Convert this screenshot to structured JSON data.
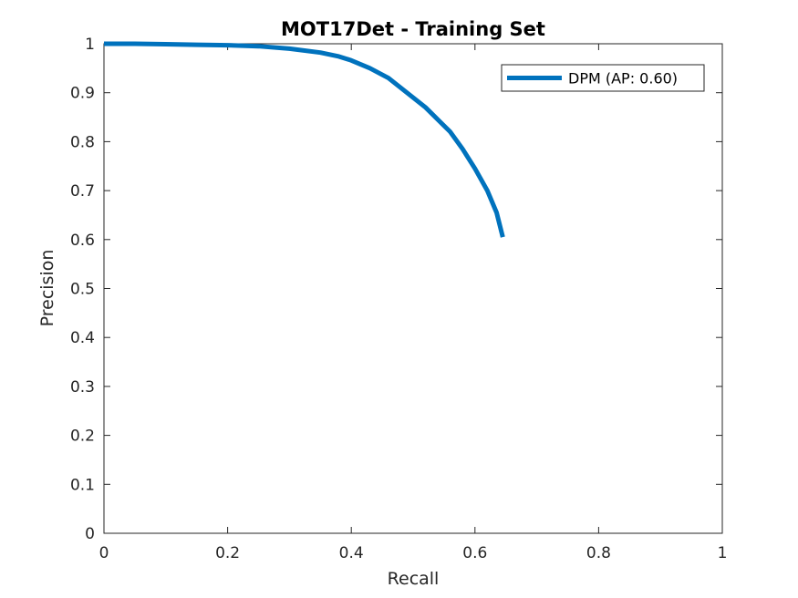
{
  "chart_data": {
    "type": "line",
    "title": "MOT17Det - Training Set",
    "xlabel": "Recall",
    "ylabel": "Precision",
    "xlim": [
      0,
      1
    ],
    "ylim": [
      0,
      1
    ],
    "xticks": [
      "0",
      "0.2",
      "0.4",
      "0.6",
      "0.8",
      "1"
    ],
    "yticks": [
      "0",
      "0.1",
      "0.2",
      "0.3",
      "0.4",
      "0.5",
      "0.6",
      "0.7",
      "0.8",
      "0.9",
      "1"
    ],
    "grid": false,
    "legend_position": "top-right",
    "series": [
      {
        "name": "DPM (AP: 0.60)",
        "color": "#0072BD",
        "x": [
          0.0,
          0.05,
          0.1,
          0.15,
          0.2,
          0.25,
          0.3,
          0.35,
          0.38,
          0.4,
          0.43,
          0.46,
          0.49,
          0.52,
          0.54,
          0.56,
          0.58,
          0.6,
          0.62,
          0.635,
          0.645
        ],
        "y": [
          1.0,
          1.0,
          0.999,
          0.998,
          0.997,
          0.995,
          0.99,
          0.982,
          0.974,
          0.966,
          0.95,
          0.93,
          0.9,
          0.87,
          0.845,
          0.82,
          0.785,
          0.745,
          0.7,
          0.655,
          0.605
        ]
      }
    ]
  }
}
